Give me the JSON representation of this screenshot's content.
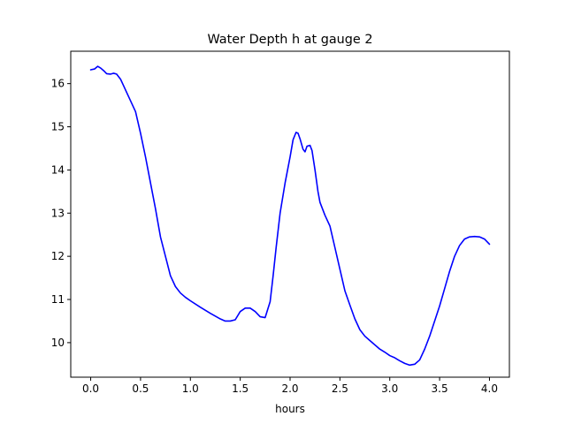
{
  "chart_data": {
    "type": "line",
    "title": "Water Depth h at gauge 2",
    "xlabel": "hours",
    "ylabel": "",
    "xlim": [
      -0.2,
      4.2
    ],
    "ylim": [
      9.2,
      16.75
    ],
    "xticks": [
      0.0,
      0.5,
      1.0,
      1.5,
      2.0,
      2.5,
      3.0,
      3.5,
      4.0
    ],
    "xtick_labels": [
      "0.0",
      "0.5",
      "1.0",
      "1.5",
      "2.0",
      "2.5",
      "3.0",
      "3.5",
      "4.0"
    ],
    "yticks": [
      10,
      11,
      12,
      13,
      14,
      15,
      16
    ],
    "ytick_labels": [
      "10",
      "11",
      "12",
      "13",
      "14",
      "15",
      "16"
    ],
    "grid": false,
    "series": [
      {
        "color": "#0000ff",
        "x": [
          0.0,
          0.04,
          0.07,
          0.1,
          0.13,
          0.16,
          0.2,
          0.23,
          0.26,
          0.3,
          0.33,
          0.36,
          0.4,
          0.45,
          0.5,
          0.55,
          0.6,
          0.65,
          0.7,
          0.75,
          0.8,
          0.85,
          0.9,
          0.95,
          1.0,
          1.1,
          1.2,
          1.3,
          1.35,
          1.4,
          1.45,
          1.5,
          1.55,
          1.6,
          1.65,
          1.7,
          1.75,
          1.8,
          1.83,
          1.86,
          1.9,
          1.95,
          2.0,
          2.03,
          2.06,
          2.08,
          2.1,
          2.13,
          2.15,
          2.17,
          2.2,
          2.22,
          2.25,
          2.28,
          2.3,
          2.35,
          2.4,
          2.45,
          2.5,
          2.55,
          2.6,
          2.65,
          2.7,
          2.75,
          2.8,
          2.85,
          2.9,
          2.95,
          3.0,
          3.05,
          3.07,
          3.1,
          3.15,
          3.2,
          3.25,
          3.3,
          3.35,
          3.4,
          3.45,
          3.5,
          3.55,
          3.6,
          3.65,
          3.7,
          3.75,
          3.8,
          3.85,
          3.9,
          3.95,
          4.0
        ],
        "y": [
          16.32,
          16.34,
          16.4,
          16.36,
          16.3,
          16.23,
          16.22,
          16.24,
          16.22,
          16.1,
          15.95,
          15.8,
          15.6,
          15.35,
          14.85,
          14.3,
          13.7,
          13.1,
          12.45,
          12.0,
          11.55,
          11.3,
          11.15,
          11.05,
          10.97,
          10.82,
          10.68,
          10.55,
          10.5,
          10.5,
          10.53,
          10.72,
          10.8,
          10.8,
          10.72,
          10.6,
          10.58,
          10.95,
          11.55,
          12.2,
          13.0,
          13.7,
          14.3,
          14.7,
          14.87,
          14.85,
          14.72,
          14.48,
          14.42,
          14.55,
          14.57,
          14.45,
          14.0,
          13.5,
          13.25,
          12.95,
          12.7,
          12.2,
          11.7,
          11.2,
          10.87,
          10.55,
          10.3,
          10.15,
          10.05,
          9.95,
          9.85,
          9.78,
          9.7,
          9.65,
          9.62,
          9.58,
          9.52,
          9.48,
          9.5,
          9.6,
          9.85,
          10.15,
          10.5,
          10.85,
          11.25,
          11.65,
          12.0,
          12.25,
          12.4,
          12.45,
          12.46,
          12.45,
          12.4,
          12.28
        ]
      }
    ]
  }
}
